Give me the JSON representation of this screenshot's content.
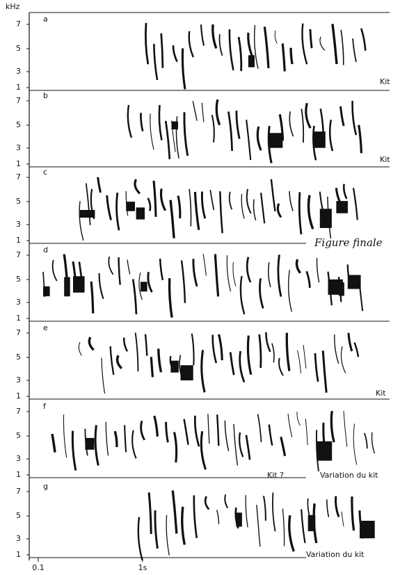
{
  "y_unit": "kHz",
  "y_ticks": [
    "1",
    "3",
    "5",
    "7"
  ],
  "x_ticks": [
    "0.1",
    "1s"
  ],
  "panels": [
    {
      "label": "a",
      "annotations": [
        "Kit"
      ]
    },
    {
      "label": "b",
      "annotations": [
        "Kit"
      ]
    },
    {
      "label": "c",
      "annotations": [
        "Figure finale"
      ]
    },
    {
      "label": "d",
      "annotations": []
    },
    {
      "label": "e",
      "annotations": [
        "Kit"
      ]
    },
    {
      "label": "f",
      "annotations": [
        "Kit ?",
        "Variation du kit"
      ]
    },
    {
      "label": "g",
      "annotations": [
        "Variation du kit"
      ]
    }
  ]
}
